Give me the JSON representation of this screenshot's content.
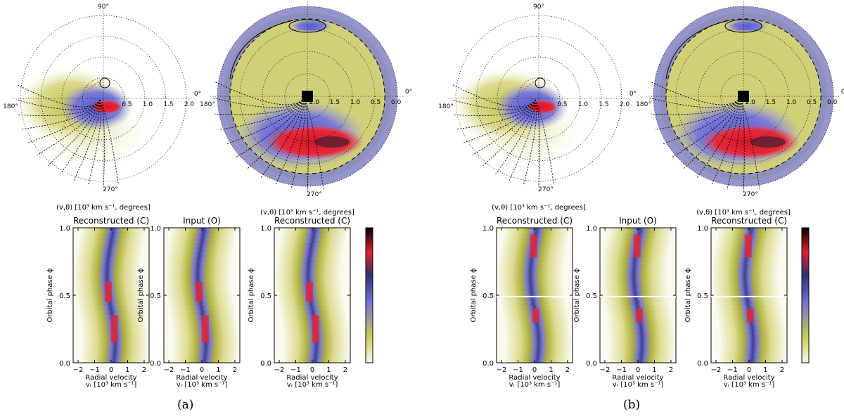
{
  "colors": {
    "low": "#fafaf2",
    "yellow": "#c8c850",
    "blue": "#7070d8",
    "dark": "#303070",
    "red": "#e02030",
    "black": "#000000"
  },
  "chart_data": [
    {
      "type": "heatmap",
      "panel": "(a)",
      "polar_maps": [
        {
          "subtitle": "(v,θ) [10³ km s⁻¹, degrees]",
          "angle_labels": [
            "90°",
            "0°",
            "180°",
            "270°"
          ],
          "radial_ticks": [
            "0.5",
            "1.0",
            "1.5",
            "2.0"
          ],
          "radial_order": "increasing",
          "radial_range": [
            0,
            2.0
          ]
        },
        {
          "subtitle": "(v,θ) [10³ km s⁻¹, degrees]",
          "angle_labels": [
            "90°",
            "0°",
            "180°",
            "270°"
          ],
          "radial_ticks": [
            "2.0",
            "1.5",
            "1.0",
            "0.5",
            "0.0"
          ],
          "radial_order": "decreasing",
          "radial_range": [
            2.0,
            0.0
          ]
        }
      ],
      "trailed_spectra": [
        {
          "title": "Reconstructed (C)",
          "ylabel": "Orbital phase ϕ",
          "xlabel": "Radial velocity",
          "xlabel2": "vᵣ [10³ km s⁻¹]",
          "xticks": [
            "−2",
            "−1",
            "0",
            "1",
            "2"
          ],
          "yticks": [
            "0.0",
            "0.5",
            "1.0"
          ],
          "xlim": [
            -2.3,
            2.3
          ],
          "ylim": [
            0,
            1
          ]
        },
        {
          "title": "Input (O)",
          "ylabel": "Orbital phase ϕ",
          "xlabel": "Radial velocity",
          "xlabel2": "vᵣ [10³ km s⁻¹]",
          "xticks": [
            "−2",
            "−1",
            "0",
            "1",
            "2"
          ],
          "yticks": [
            "0.0",
            "0.5",
            "1.0"
          ],
          "xlim": [
            -2.3,
            2.3
          ],
          "ylim": [
            0,
            1
          ]
        },
        {
          "title": "Reconstructed (C)",
          "ylabel": "Orbital phase ϕ",
          "xlabel": "Radial velocity",
          "xlabel2": "vᵣ [10³ km s⁻¹]",
          "xticks": [
            "−2",
            "−1",
            "0",
            "1",
            "2"
          ],
          "yticks": [
            "0.0",
            "0.5",
            "1.0"
          ],
          "xlim": [
            -2.3,
            2.3
          ],
          "ylim": [
            0,
            1
          ]
        }
      ],
      "colorbar": {
        "colors": [
          "#fafaf2",
          "#c8c850",
          "#7070d8",
          "#303070",
          "#e02030",
          "#000000"
        ]
      }
    },
    {
      "type": "heatmap",
      "panel": "(b)",
      "polar_maps": [
        {
          "subtitle": "(v,θ) [10³ km s⁻¹, degrees]",
          "angle_labels": [
            "90°",
            "0°",
            "180°",
            "270°"
          ],
          "radial_ticks": [
            "0.5",
            "1.0",
            "1.5",
            "2.0"
          ],
          "radial_order": "increasing",
          "radial_range": [
            0,
            2.0
          ]
        },
        {
          "subtitle": "(v,θ) [10³ km s⁻¹, degrees]",
          "angle_labels": [
            "90°",
            "0°",
            "180°",
            "270°"
          ],
          "radial_ticks": [
            "2.0",
            "1.5",
            "1.0",
            "0.5",
            "0.0"
          ],
          "radial_order": "decreasing",
          "radial_range": [
            2.0,
            0.0
          ]
        }
      ],
      "trailed_spectra": [
        {
          "title": "Reconstructed (C)",
          "ylabel": "Orbital phase ϕ",
          "xlabel": "Radial velocity",
          "xlabel2": "vᵣ [10³ km s⁻¹]",
          "xticks": [
            "−2",
            "−1",
            "0",
            "1",
            "2"
          ],
          "yticks": [
            "0.0",
            "0.5",
            "1.0"
          ],
          "xlim": [
            -2.3,
            2.3
          ],
          "ylim": [
            0,
            1
          ],
          "gap_phase": 0.49
        },
        {
          "title": "Input (O)",
          "ylabel": "Orbital phase ϕ",
          "xlabel": "Radial velocity",
          "xlabel2": "vᵣ [10³ km s⁻¹]",
          "xticks": [
            "−2",
            "−1",
            "0",
            "1",
            "2"
          ],
          "yticks": [
            "0.0",
            "0.5",
            "1.0"
          ],
          "xlim": [
            -2.3,
            2.3
          ],
          "ylim": [
            0,
            1
          ],
          "gap_phase": 0.49
        },
        {
          "title": "Reconstructed (C)",
          "ylabel": "Orbital phase ϕ",
          "xlabel": "Radial velocity",
          "xlabel2": "vᵣ [10³ km s⁻¹]",
          "xticks": [
            "−2",
            "−1",
            "0",
            "1",
            "2"
          ],
          "yticks": [
            "0.0",
            "0.5",
            "1.0"
          ],
          "xlim": [
            -2.3,
            2.3
          ],
          "ylim": [
            0,
            1
          ],
          "gap_phase": 0.49
        }
      ],
      "colorbar": {
        "colors": [
          "#fafaf2",
          "#c8c850",
          "#7070d8",
          "#303070",
          "#e02030",
          "#000000"
        ]
      }
    }
  ]
}
